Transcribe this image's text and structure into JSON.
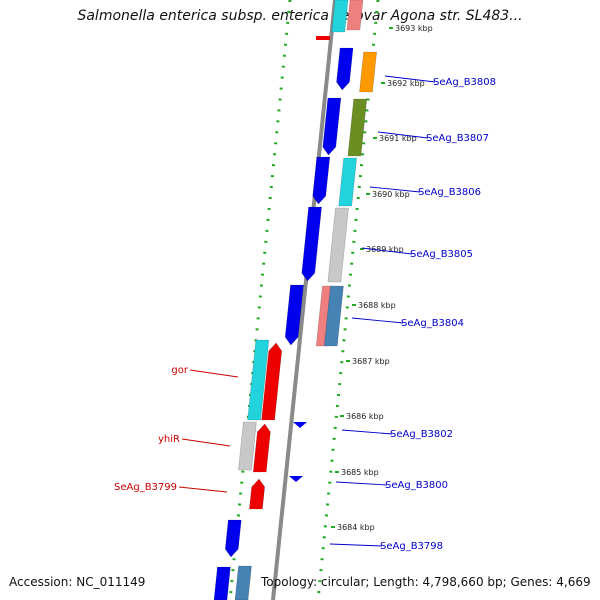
{
  "title": "Salmonella enterica subsp. enterica serovar Agona str. SL483...",
  "footer": {
    "accession": "Accession: NC_011149",
    "topology": "Topology: circular; Length: 4,798,660 bp; Genes: 4,669"
  },
  "ticks": [
    "3693 kbp",
    "3692 kbp",
    "3691 kbp",
    "3690 kbp",
    "3689 kbp",
    "3688 kbp",
    "3687 kbp",
    "3686 kbp",
    "3685 kbp",
    "3684 kbp"
  ],
  "genes_right": [
    "SeAg_B3808",
    "SeAg_B3807",
    "SeAg_B3806",
    "SeAg_B3805",
    "SeAg_B3804",
    "SeAg_B3802",
    "SeAg_B3800",
    "SeAg_B3798"
  ],
  "genes_left": [
    "gor",
    "yhiR",
    "SeAg_B3799"
  ],
  "colors": {
    "forward_label": "#0000cc",
    "reverse_label": "#cc0000",
    "blue": "#0000ee",
    "red": "#ee0000",
    "cyan": "#22d3dd",
    "orange": "#ff9900",
    "olive": "#6b8e23",
    "grey": "#c8c8c8",
    "pink": "#f08080",
    "steel": "#4682b4",
    "dotted_guide": "#22aa22"
  }
}
